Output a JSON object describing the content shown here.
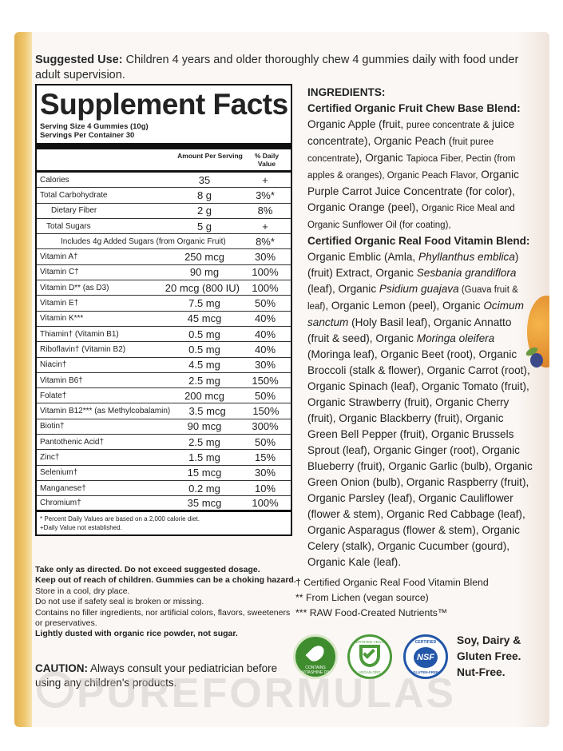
{
  "suggested_use": {
    "label": "Suggested Use:",
    "text": " Children 4 years and older thoroughly chew 4 gummies daily with food under adult supervision."
  },
  "supplement_facts": {
    "title": "Supplement Facts",
    "serving_size": "Serving Size 4 Gummies (10g)",
    "servings_per_container": "Servings Per Container 30",
    "col_amount": "Amount Per Serving",
    "col_dv": "% Daily Value",
    "rows": [
      {
        "name": "Calories",
        "amount": "35",
        "dv": "+"
      },
      {
        "name": "Total Carbohydrate",
        "amount": "8 g",
        "dv": "3%*"
      },
      {
        "name": "Dietary Fiber",
        "amount": "2 g",
        "dv": "8%"
      },
      {
        "name": "Total Sugars",
        "amount": "5 g",
        "dv": "+"
      },
      {
        "name": "Includes 4g Added Sugars (from Organic Fruit)",
        "amount": "",
        "dv": "8%*"
      },
      {
        "name": "Vitamin A†",
        "amount": "250 mcg",
        "dv": "30%"
      },
      {
        "name": "Vitamin C†",
        "amount": "90 mg",
        "dv": "100%"
      },
      {
        "name": "Vitamin D** (as D3)",
        "amount": "20 mcg (800 IU)",
        "dv": "100%"
      },
      {
        "name": "Vitamin E†",
        "amount": "7.5 mg",
        "dv": "50%"
      },
      {
        "name": "Vitamin K***",
        "amount": "45 mcg",
        "dv": "40%"
      },
      {
        "name": "Thiamin† (Vitamin B1)",
        "amount": "0.5 mg",
        "dv": "40%"
      },
      {
        "name": "Riboflavin† (Vitamin B2)",
        "amount": "0.5 mg",
        "dv": "40%"
      },
      {
        "name": "Niacin†",
        "amount": "4.5 mg",
        "dv": "30%"
      },
      {
        "name": "Vitamin B6†",
        "amount": "2.5 mg",
        "dv": "150%"
      },
      {
        "name": "Folate†",
        "amount": "200 mcg",
        "dv": "50%"
      },
      {
        "name": "Vitamin B12*** (as Methylcobalamin)",
        "amount": "3.5 mcg",
        "dv": "150%"
      },
      {
        "name": "Biotin†",
        "amount": "90 mcg",
        "dv": "300%"
      },
      {
        "name": "Pantothenic Acid†",
        "amount": "2.5 mg",
        "dv": "50%"
      },
      {
        "name": "Zinc†",
        "amount": "1.5 mg",
        "dv": "15%"
      },
      {
        "name": "Selenium†",
        "amount": "15 mcg",
        "dv": "30%"
      },
      {
        "name": "Manganese†",
        "amount": "0.2 mg",
        "dv": "10%"
      },
      {
        "name": "Chromium†",
        "amount": "35 mcg",
        "dv": "100%"
      }
    ],
    "footnote_1": "* Percent Daily Values are based on a 2,000 calorie diet.",
    "footnote_2": "+Daily Value not established."
  },
  "warnings": {
    "line1": "Take only as directed. Do not exceed suggested dosage.",
    "line2": "Keep out of reach of children. Gummies can be a choking hazard.",
    "line3": "Store in a cool, dry place.",
    "line4": "Do not use if safety seal is broken or missing.",
    "line5": "Contains no filler ingredients, nor artificial colors, flavors, sweeteners or preservatives.",
    "line6": "Lightly dusted with organic rice powder, not sugar."
  },
  "caution": {
    "label": "CAUTION:",
    "text": " Always consult your pediatrician before using any children's products."
  },
  "ingredients": {
    "title": "INGREDIENTS:",
    "blend1_title": "Certified Organic Fruit Chew Base Blend:",
    "blend1_a": " Organic Apple (fruit, ",
    "blend1_b": "puree concentrate &",
    "blend1_c": " juice concentrate), Organic Peach (",
    "blend1_d": "fruit puree concentrate",
    "blend1_e": "), Organic ",
    "blend1_f": "Tapioca Fiber, Pectin (from apples & oranges), Organic Peach Flavor,",
    "blend1_g": " Organic Purple Carrot Juice Concentrate (for color), Organic Orange (peel), ",
    "blend1_h": "Organic Rice Meal and Organic Sunflower Oil (for coating),",
    "blend2_title": "Certified Organic Real Food Vitamin Blend:",
    "blend2_a": " Organic Emblic (Amla, ",
    "blend2_i1": "Phyllanthus emblica",
    "blend2_b": ") (fruit) Extract, Organic ",
    "blend2_i2": "Sesbania grandiflora",
    "blend2_c": " (leaf), Organic ",
    "blend2_i3": "Psidium guajava",
    "blend2_d": " (Guava fruit & leaf)",
    "blend2_e": ", Organic Lemon (peel), Organic ",
    "blend2_i4": "Ocimum sanctum",
    "blend2_f": " (Holy Basil leaf), Organic Annatto (fruit & seed), Organic ",
    "blend2_i5": "Moringa oleifera",
    "blend2_g": " (Moringa leaf), Organic Beet (root), Organic Broccoli (stalk & flower), Organic Carrot (root), Organic Spinach (leaf), Organic Tomato (fruit), Organic Strawberry (fruit), Organic Cherry (fruit), Organic Blackberry (fruit), Organic Green Bell Pepper (fruit), Organic Brussels Sprout (leaf), Organic Ginger (root), Organic Blueberry (fruit), Organic Garlic (bulb), Organic Green Onion (bulb), Organic Raspberry (fruit), Organic Parsley (leaf), Organic Cauliflower (flower & stem), Organic Red Cabbage (leaf), Organic Asparagus (flower & stem), Organic Celery (stalk), Organic Cucumber (gourd), Organic Kale (leaf)."
  },
  "notes": {
    "n1": "† Certified Organic Real Food Vitamin Blend",
    "n2": "** From Lichen (vegan source)",
    "n3": "*** RAW Food-Created Nutrients™"
  },
  "badges": {
    "vitashine_text": "CONTAINS VITASHINE D3",
    "vegan_text": "CERTIFIED VEGAN",
    "vegan_url": "VEGAN.ORG",
    "nsf_top": "CERTIFIED",
    "nsf_mark": "NSF",
    "nsf_bottom": "GLUTEN-FREE",
    "free_1": "Soy, Dairy &",
    "free_2": "Gluten Free.",
    "free_3": "Nut-Free."
  },
  "watermark": "PUREFORMULAS"
}
